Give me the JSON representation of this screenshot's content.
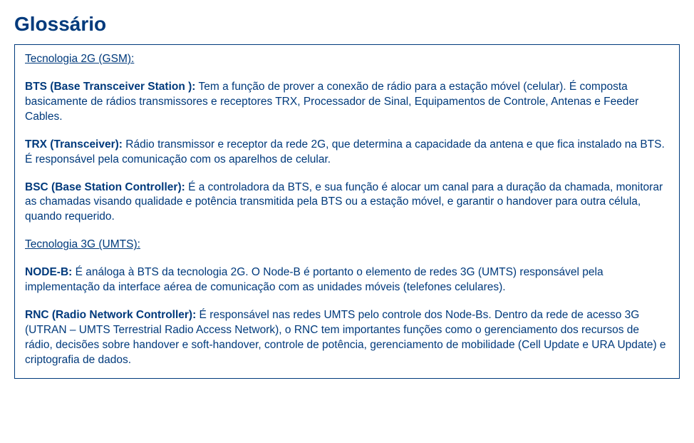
{
  "title": "Glossário",
  "colors": {
    "text": "#003a7c",
    "border": "#003a7c",
    "background": "#ffffff"
  },
  "typography": {
    "title_fontsize": 28,
    "body_fontsize": 15.5,
    "font_family": "Arial"
  },
  "sections": [
    {
      "heading": "Tecnologia 2G (GSM):",
      "entries": [
        {
          "term": "BTS (Base Transceiver Station ):",
          "definition": " Tem a função de prover a conexão de rádio para a estação móvel (celular). É composta basicamente de rádios transmissores e receptores TRX, Processador de Sinal, Equipamentos de Controle, Antenas e Feeder Cables."
        },
        {
          "term": "TRX (Transceiver):",
          "definition": "  Rádio transmissor e receptor da rede 2G, que determina a capacidade da antena e que fica instalado na BTS. É responsável pela comunicação com os aparelhos de celular."
        },
        {
          "term": "BSC (Base Station Controller):",
          "definition": " É a controladora da BTS, e sua função é alocar um canal para a duração da chamada, monitorar as chamadas visando qualidade e potência transmitida pela BTS ou a estação móvel, e garantir o handover para outra célula, quando requerido."
        }
      ]
    },
    {
      "heading": "Tecnologia 3G (UMTS):",
      "entries": [
        {
          "term": "NODE-B:",
          "definition": " É análoga à BTS da tecnologia 2G. O Node-B é portanto o elemento de redes 3G (UMTS) responsável pela implementação da interface aérea de comunicação com as unidades móveis (telefones celulares)."
        },
        {
          "term": "RNC (Radio Network Controller):",
          "definition": " É responsável nas redes UMTS pelo controle dos Node-Bs. Dentro da rede de acesso 3G (UTRAN – UMTS Terrestrial Radio Access Network), o RNC tem importantes funções como o gerenciamento dos recursos de rádio, decisões sobre handover e soft-handover, controle de potência, gerenciamento de mobilidade (Cell Update e URA Update) e criptografia de dados."
        }
      ]
    }
  ]
}
